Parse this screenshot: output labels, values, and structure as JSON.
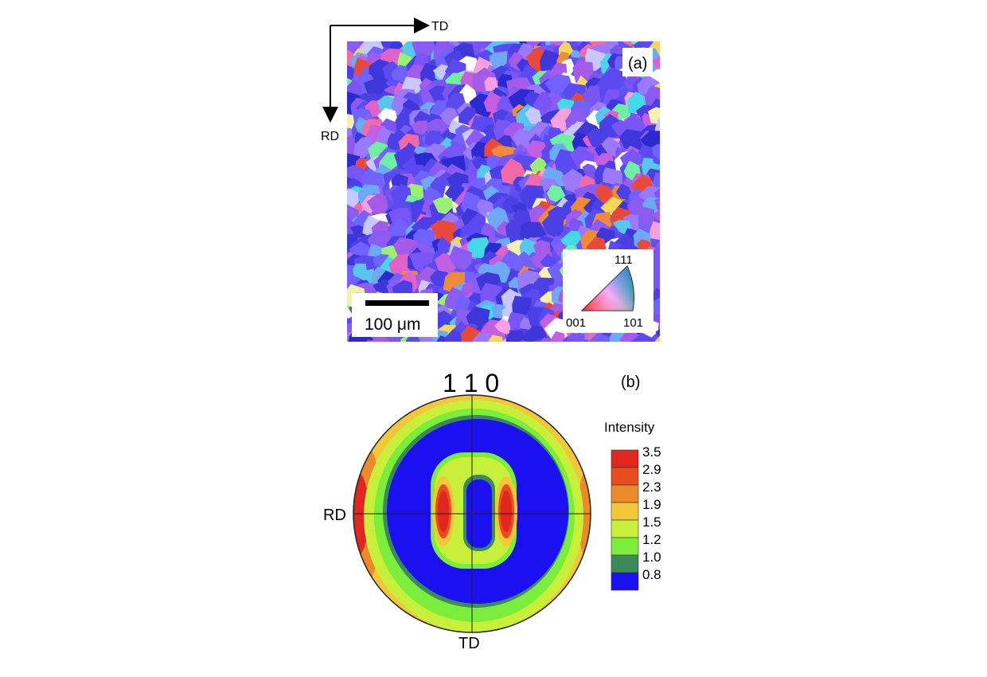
{
  "panel_a": {
    "label": "(a)",
    "axes": {
      "horizontal": "TD",
      "vertical": "RD"
    },
    "scale_bar": {
      "label": "100 μm"
    },
    "ipf_key": {
      "top": "111",
      "left": "001",
      "right": "101"
    },
    "grain_palette": [
      "#5a4af0",
      "#7a55f5",
      "#4b3fe6",
      "#6f62ff",
      "#3d36d8",
      "#8c5cf2",
      "#a45be8",
      "#c35fe0",
      "#e062c8",
      "#f06aa6",
      "#6fa8f5",
      "#57c7ee",
      "#44d9e8",
      "#e84a3a",
      "#f0893a",
      "#f2d85a",
      "#f4f0b0",
      "#6ff0a0",
      "#9af070",
      "#ffffff",
      "#c8c8ff",
      "#2a2ad0",
      "#9a7af8",
      "#f5a0e0"
    ]
  },
  "panel_b": {
    "label": "(b)",
    "title": "1 1 0",
    "axes": {
      "left": "RD",
      "bottom": "TD"
    },
    "legend": {
      "title": "Intensity",
      "levels": [
        "3.5",
        "2.9",
        "2.3",
        "1.9",
        "1.5",
        "1.2",
        "1.0",
        "0.8"
      ],
      "colors": [
        "#e0261e",
        "#e84c1f",
        "#ec8a2a",
        "#f2c83a",
        "#c8f03a",
        "#7aee3a",
        "#3c8a5a",
        "#1a10f0"
      ]
    }
  }
}
